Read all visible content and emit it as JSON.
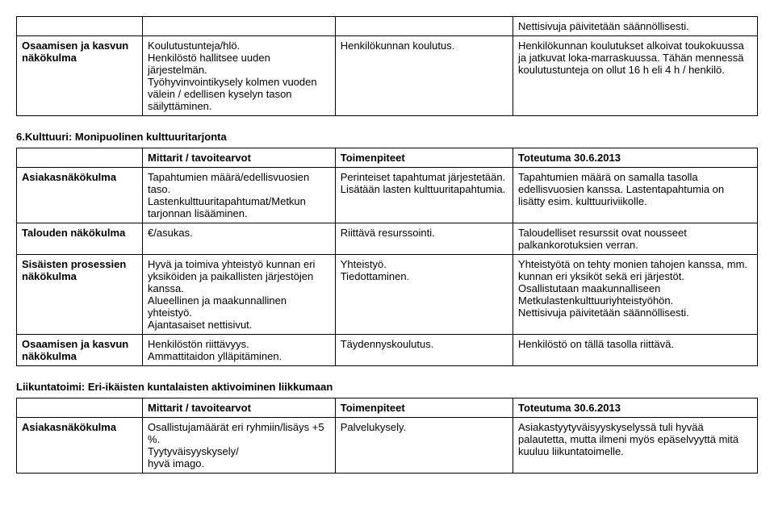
{
  "table1": {
    "row0": {
      "c1": "",
      "c2": "",
      "c3": "",
      "c4": "Nettisivuja päivitetään säännöllisesti."
    },
    "row1": {
      "c1": "Osaamisen ja kasvun näkökulma",
      "c2": "Koulutustunteja/hlö.\nHenkilöstö hallitsee uuden järjestelmän.\nTyöhyvinvointikysely kolmen vuoden välein / edellisen kyselyn tason säilyttäminen.",
      "c3": "Henkilökunnan koulutus.",
      "c4": "Henkilökunnan koulutukset alkoivat toukokuussa ja jatkuvat loka-marraskuussa. Tähän mennessä koulutustunteja on ollut 16 h eli 4 h / henkilö."
    }
  },
  "section1_title": "6.Kulttuuri:  Monipuolinen kulttuuritarjonta",
  "table2": {
    "header": {
      "c1": "",
      "c2": "Mittarit / tavoitearvot",
      "c3": "Toimenpiteet",
      "c4": "Toteutuma 30.6.2013"
    },
    "row1": {
      "c1": "Asiakasnäkökulma",
      "c2": "Tapahtumien määrä/edellisvuosien taso.\nLastenkulttuuritapahtumat/Metkun tarjonnan lisääminen.",
      "c3": "Perinteiset tapahtumat järjestetään.\nLisätään lasten kulttuuritapahtumia.",
      "c4": "Tapahtumien määrä on samalla tasolla edellisvuosien kanssa. Lastentapahtumia on lisätty esim. kulttuuriviikolle."
    },
    "row2": {
      "c1": "Talouden näkökulma",
      "c2": "€/asukas.",
      "c3": "Riittävä resurssointi.",
      "c4": "Taloudelliset resurssit ovat nousseet palkankorotuksien verran."
    },
    "row3": {
      "c1": "Sisäisten prosessien näkökulma",
      "c2": "Hyvä ja toimiva yhteistyö kunnan eri yksiköiden ja paikallisten järjestöjen kanssa.\nAlueellinen ja maakunnallinen yhteistyö.\nAjantasaiset nettisivut.",
      "c3": "Yhteistyö.\nTiedottaminen.",
      "c4": "Yhteistyötä on tehty monien tahojen kanssa, mm. kunnan eri yksiköt sekä eri järjestöt.\nOsallistutaan maakunnalliseen Metkulastenkulttuuriyhteistyöhön.\nNettisivuja päivitetään säännöllisesti."
    },
    "row4": {
      "c1": "Osaamisen ja kasvun näkökulma",
      "c2": "Henkilöstön riittävyys.\nAmmattitaidon ylläpitäminen.",
      "c3": "Täydennyskoulutus.",
      "c4": "Henkilöstö on tällä tasolla riittävä."
    }
  },
  "section2_title": "Liikuntatoimi: Eri-ikäisten kuntalaisten aktivoiminen liikkumaan",
  "table3": {
    "header": {
      "c1": "",
      "c2": "Mittarit / tavoitearvot",
      "c3": "Toimenpiteet",
      "c4": "Toteutuma 30.6.2013"
    },
    "row1": {
      "c1": "Asiakasnäkökulma",
      "c2": "Osallistujamäärät eri ryhmiin/lisäys +5 %.\nTyytyväisyyskysely/\nhyvä imago.",
      "c3": "Palvelukysely.",
      "c4": "Asiakastyytyväisyyskyselyssä tuli hyvää palautetta, mutta ilmeni myös epäselvyyttä mitä kuuluu liikuntatoimelle."
    }
  }
}
